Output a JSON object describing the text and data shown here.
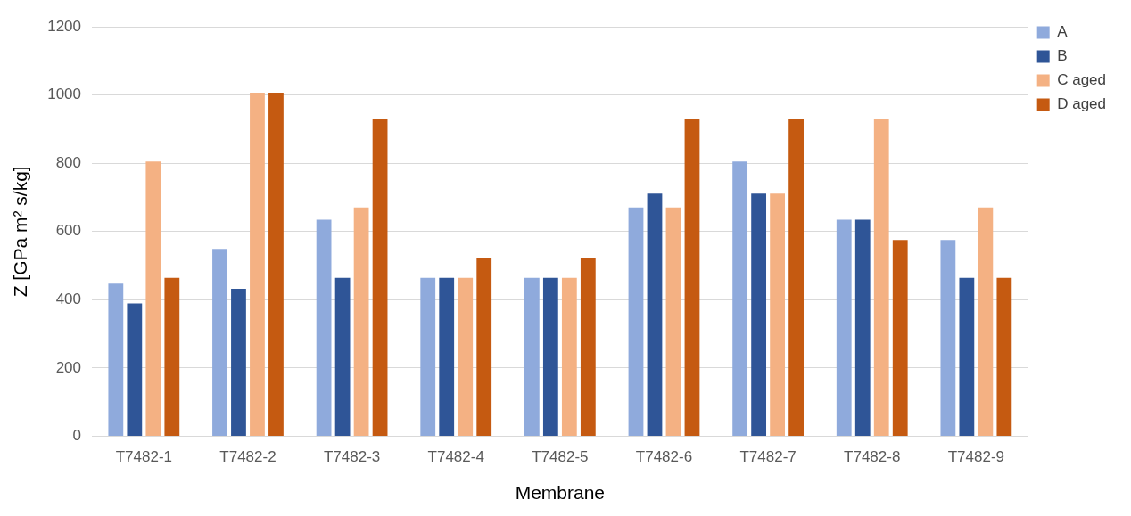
{
  "chart_data": {
    "type": "bar",
    "xlabel": "Membrane",
    "ylabel": "Z [GPa m² s/kg]",
    "categories": [
      "T7482-1",
      "T7482-2",
      "T7482-3",
      "T7482-4",
      "T7482-5",
      "T7482-6",
      "T7482-7",
      "T7482-8",
      "T7482-9"
    ],
    "series": [
      {
        "name": "A",
        "color": "#8faadc",
        "values": [
          447,
          549,
          635,
          464,
          464,
          671,
          805,
          635,
          575
        ]
      },
      {
        "name": "B",
        "color": "#2f5597",
        "values": [
          389,
          432,
          464,
          464,
          464,
          711,
          711,
          635,
          464
        ]
      },
      {
        "name": "C aged",
        "color": "#f4b183",
        "values": [
          805,
          1007,
          671,
          464,
          464,
          671,
          711,
          929,
          671
        ]
      },
      {
        "name": "D aged",
        "color": "#c55a11",
        "values": [
          464,
          1007,
          929,
          524,
          524,
          929,
          929,
          575,
          464
        ]
      }
    ],
    "ylim": [
      0,
      1200
    ],
    "yticks": [
      0,
      200,
      400,
      600,
      800,
      1000,
      1200
    ],
    "grid": "y",
    "legend": "top right"
  }
}
